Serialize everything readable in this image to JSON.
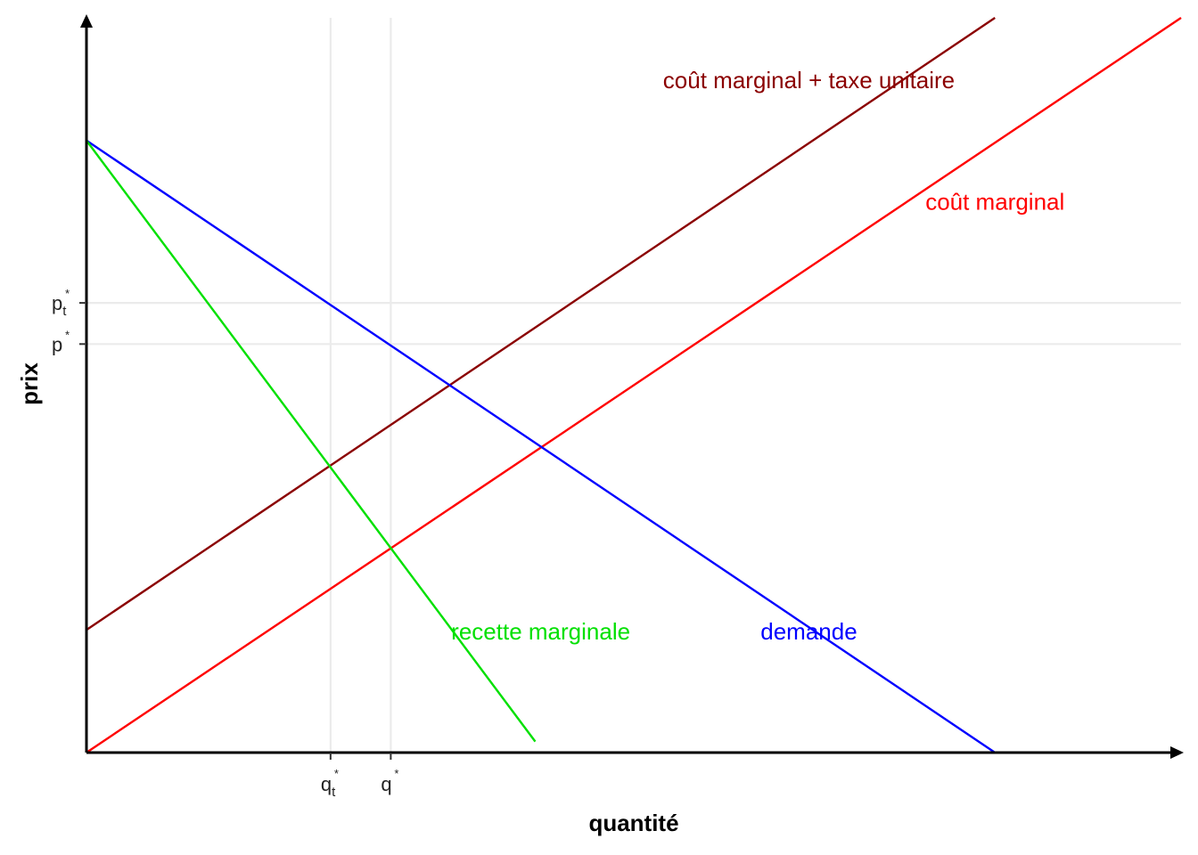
{
  "chart_data": {
    "type": "line",
    "xlabel": "quantité",
    "ylabel": "prix",
    "xlim": [
      0,
      100
    ],
    "ylim": [
      0,
      100
    ],
    "grid": true,
    "arrow_axes": true,
    "series": [
      {
        "name": "coût marginal + taxe unitaire",
        "color": "#8B0000",
        "x": [
          0,
          83
        ],
        "y": [
          16.7,
          100
        ]
      },
      {
        "name": "coût marginal",
        "color": "#FF0000",
        "x": [
          0,
          100
        ],
        "y": [
          0,
          100
        ]
      },
      {
        "name": "demande",
        "color": "#0000FF",
        "x": [
          0,
          83
        ],
        "y": [
          83.3,
          0
        ]
      },
      {
        "name": "recette marginale",
        "color": "#00E000",
        "x": [
          0,
          41
        ],
        "y": [
          83.3,
          1.5
        ]
      }
    ],
    "series_labels": [
      {
        "text": "coût marginal + taxe unitaire",
        "color": "#8B0000",
        "x": 66,
        "y": 91.5
      },
      {
        "text": "coût marginal",
        "color": "#FF0000",
        "x": 83,
        "y": 75
      },
      {
        "text": "recette marginale",
        "color": "#00E000",
        "x": 41.5,
        "y": 16.5
      },
      {
        "text": "demande",
        "color": "#0000FF",
        "x": 66,
        "y": 16.5
      }
    ],
    "x_ticks": [
      {
        "value": 22.3,
        "base": "q",
        "sub": "t",
        "sup": "*"
      },
      {
        "value": 27.8,
        "base": "q",
        "sub": "",
        "sup": "*"
      }
    ],
    "y_ticks": [
      {
        "value": 61.2,
        "base": "p",
        "sub": "t",
        "sup": "*"
      },
      {
        "value": 55.6,
        "base": "p",
        "sub": "",
        "sup": "*"
      }
    ]
  }
}
